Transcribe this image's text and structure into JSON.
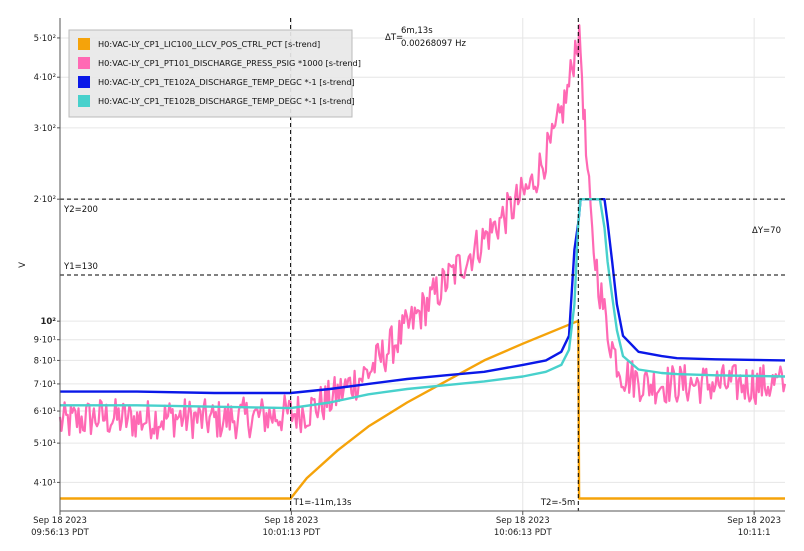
{
  "chart_data": {
    "type": "line",
    "ylabel": "V",
    "y_scale": "log",
    "ylim": [
      34,
      560
    ],
    "x_labels": [
      {
        "date": "Sep 18 2023",
        "time": "09:56:13 PDT",
        "t": 0
      },
      {
        "date": "Sep 18 2023",
        "time": "10:01:13 PDT",
        "t": 300
      },
      {
        "date": "Sep 18 2023",
        "time": "10:06:13 PDT",
        "t": 600
      },
      {
        "date": "Sep 18 2023",
        "time": "10:11:1",
        "t": 900
      }
    ],
    "x_unit": "seconds after 09:56:13 PDT",
    "xlim": [
      0,
      940
    ],
    "y_ticks": [
      {
        "label": "4·10¹",
        "value": 40
      },
      {
        "label": "5·10¹",
        "value": 50
      },
      {
        "label": "6·10¹",
        "value": 60
      },
      {
        "label": "7·10¹",
        "value": 70
      },
      {
        "label": "8·10¹",
        "value": 80
      },
      {
        "label": "9·10¹",
        "value": 90
      },
      {
        "label": "10²",
        "value": 100
      },
      {
        "label": "2·10²",
        "value": 200
      },
      {
        "label": "3·10²",
        "value": 300
      },
      {
        "label": "4·10²",
        "value": 400
      },
      {
        "label": "5·10²",
        "value": 500
      }
    ],
    "cursors": {
      "t1_label": "T1=-11m,13s",
      "t1": 299,
      "t2_label": "T2=-5m",
      "t2": 672,
      "delta_t": "ΔT=",
      "delta_t_value": "6m,13s",
      "delta_t_freq": "0.00268097 Hz",
      "y1_label": "Y1=130",
      "y1": 130,
      "y2_label": "Y2=200",
      "y2": 200,
      "delta_y": "ΔY=70"
    },
    "legend_placement": "top-left",
    "grid": true,
    "series": [
      {
        "name": "H0:VAC-LY_CP1_LIC100_LLCV_POS_CTRL_PCT [s-trend]",
        "color": "#f5a30a",
        "x": [
          0,
          299,
          320,
          360,
          400,
          450,
          500,
          550,
          600,
          671,
          672,
          673,
          940
        ],
        "y": [
          36.5,
          36.5,
          41,
          48,
          55,
          63,
          71,
          80,
          88,
          100,
          100,
          36.5,
          36.5
        ]
      },
      {
        "name": "H0:VAC-LY_CP1_PT101_DISCHARGE_PRESS_PSIG *1000 [s-trend]",
        "color": "#ff69b4",
        "x": [
          0,
          50,
          100,
          150,
          200,
          250,
          299,
          320,
          350,
          400,
          450,
          500,
          550,
          580,
          610,
          640,
          660,
          670,
          675,
          682,
          690,
          700,
          710,
          720,
          730,
          760,
          800,
          850,
          900,
          940
        ],
        "y": [
          56,
          58,
          57,
          58,
          57,
          58,
          59,
          60,
          64,
          75,
          96,
          125,
          160,
          185,
          215,
          280,
          380,
          500,
          470,
          260,
          160,
          120,
          95,
          82,
          74,
          70,
          70,
          70,
          70,
          70
        ],
        "noise": 0.05
      },
      {
        "name": "H0:VAC-LY_CP1_TE102A_DISCHARGE_TEMP_DEGC *-1 [s-trend]",
        "color": "#0a18e8",
        "x": [
          0,
          100,
          200,
          299,
          350,
          400,
          450,
          500,
          550,
          600,
          630,
          650,
          660,
          667,
          672,
          675,
          680,
          700,
          706,
          710,
          716,
          722,
          730,
          750,
          780,
          800,
          850,
          940
        ],
        "y": [
          67,
          67,
          66.5,
          66.5,
          68,
          70,
          72,
          73.5,
          75,
          78,
          80,
          84,
          92,
          150,
          175,
          200,
          200,
          200,
          200,
          175,
          140,
          110,
          92,
          84,
          82,
          81,
          80.5,
          80
        ]
      },
      {
        "name": "H0:VAC-LY_CP1_TE102B_DISCHARGE_TEMP_DEGC *-1 [s-trend]",
        "color": "#48d1cc",
        "x": [
          0,
          100,
          200,
          299,
          350,
          400,
          450,
          500,
          550,
          600,
          630,
          650,
          660,
          667,
          672,
          675,
          680,
          700,
          706,
          710,
          716,
          722,
          730,
          750,
          780,
          800,
          850,
          940
        ],
        "y": [
          62,
          62,
          61.5,
          61,
          63,
          66,
          68,
          69.5,
          71,
          73,
          75,
          78,
          85,
          110,
          175,
          200,
          200,
          200,
          170,
          140,
          115,
          95,
          82,
          76,
          74.5,
          74,
          73.5,
          73
        ]
      }
    ]
  }
}
